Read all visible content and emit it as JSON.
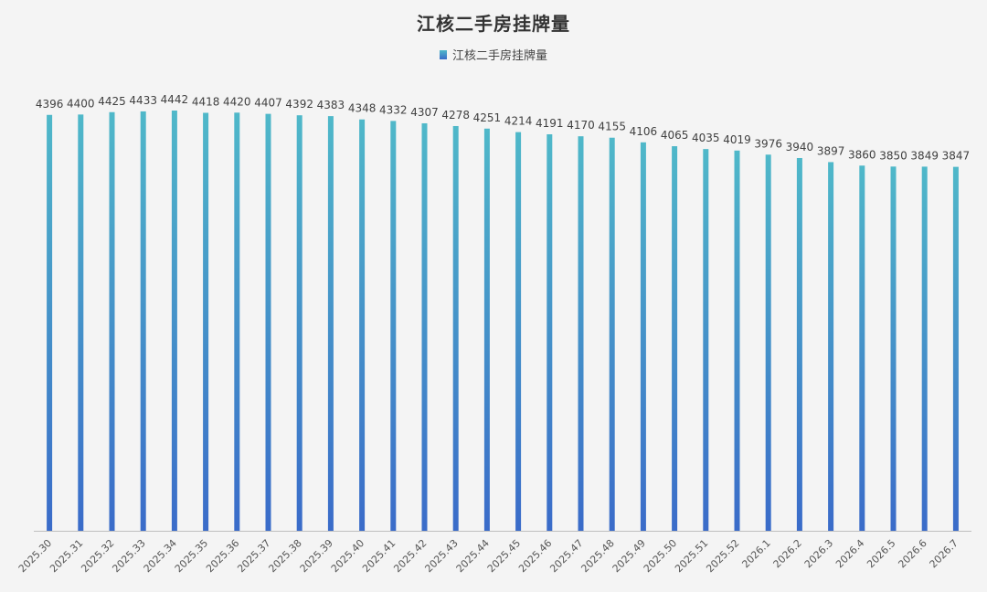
{
  "chart_data": {
    "type": "bar",
    "title": "江核二手房挂牌量",
    "legend": [
      "江核二手房挂牌量"
    ],
    "legend_position": "top",
    "grid": false,
    "ylim": [
      0,
      4442
    ],
    "categories": [
      "2025.30",
      "2025.31",
      "2025.32",
      "2025.33",
      "2025.34",
      "2025.35",
      "2025.36",
      "2025.37",
      "2025.38",
      "2025.39",
      "2025.40",
      "2025.41",
      "2025.42",
      "2025.43",
      "2025.44",
      "2025.45",
      "2025.46",
      "2025.47",
      "2025.48",
      "2025.49",
      "2025.50",
      "2025.51",
      "2025.52",
      "2026.1",
      "2026.2",
      "2026.3",
      "2026.4",
      "2026.5",
      "2026.6",
      "2026.7"
    ],
    "series": [
      {
        "name": "江核二手房挂牌量",
        "values": [
          4396,
          4400,
          4425,
          4433,
          4442,
          4418,
          4420,
          4407,
          4392,
          4383,
          4348,
          4332,
          4307,
          4278,
          4251,
          4214,
          4191,
          4170,
          4155,
          4106,
          4065,
          4035,
          4019,
          3976,
          3940,
          3897,
          3860,
          3850,
          3849,
          3847
        ]
      }
    ],
    "colors": {
      "bar_top": "#4fb8c9",
      "bar_bottom": "#3a6bc9",
      "axis": "#bfbfbf"
    }
  }
}
